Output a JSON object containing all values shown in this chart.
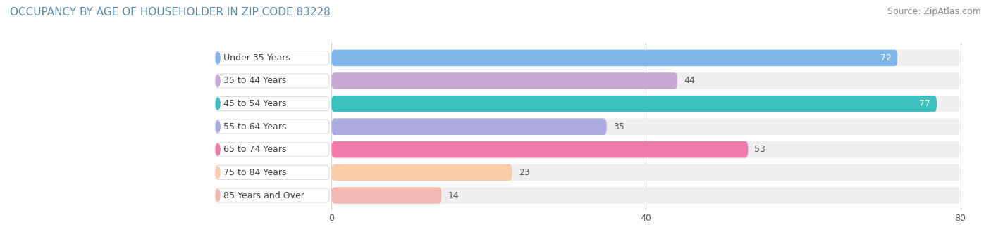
{
  "title": "OCCUPANCY BY AGE OF HOUSEHOLDER IN ZIP CODE 83228",
  "source": "Source: ZipAtlas.com",
  "categories": [
    "Under 35 Years",
    "35 to 44 Years",
    "45 to 54 Years",
    "55 to 64 Years",
    "65 to 74 Years",
    "75 to 84 Years",
    "85 Years and Over"
  ],
  "values": [
    72,
    44,
    77,
    35,
    53,
    23,
    14
  ],
  "bar_colors": [
    "#7EB6E8",
    "#C9A8D4",
    "#3BBFBF",
    "#AEAAE0",
    "#F07AAA",
    "#FACCAA",
    "#F0B8B0"
  ],
  "xlim": [
    0,
    80
  ],
  "xticks": [
    0,
    40,
    80
  ],
  "bar_height": 0.72,
  "background_color": "#ffffff",
  "bar_bg_color": "#efefef",
  "label_color_inside": "#ffffff",
  "label_color_outside": "#555555",
  "title_fontsize": 11,
  "source_fontsize": 9,
  "label_fontsize": 9,
  "tick_fontsize": 9,
  "category_fontsize": 9
}
